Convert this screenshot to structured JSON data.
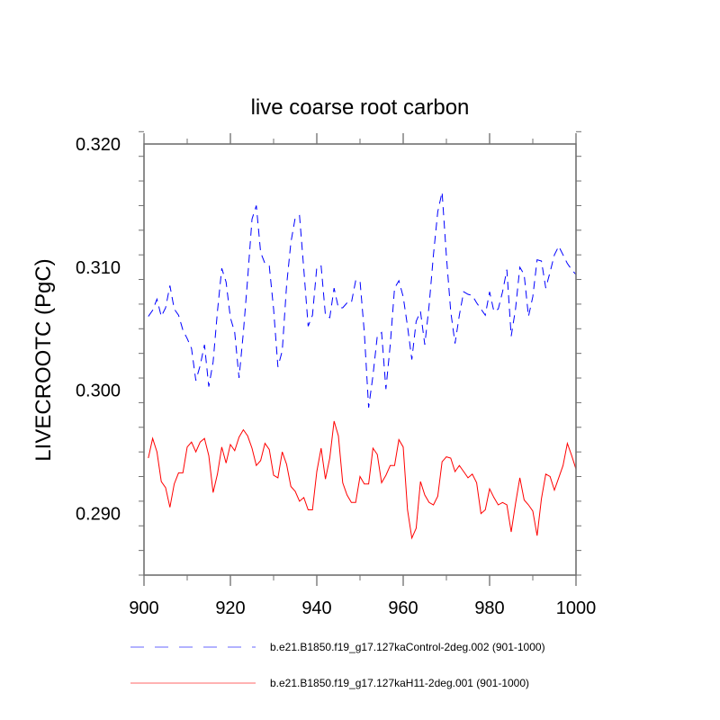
{
  "chart_data": {
    "type": "line",
    "title": "live coarse root carbon",
    "xlabel": "",
    "ylabel": "LIVECROOTC  (PgC)",
    "xlim": [
      900,
      1000
    ],
    "ylim": [
      0.285,
      0.32
    ],
    "xticks": [
      900,
      920,
      940,
      960,
      980,
      1000
    ],
    "xtick_labels": [
      "900",
      "920",
      "940",
      "960",
      "980",
      "1000"
    ],
    "xminor_step": 10,
    "yticks": [
      0.29,
      0.3,
      0.31,
      0.32
    ],
    "ytick_labels": [
      "0.290",
      "0.300",
      "0.310",
      "0.320"
    ],
    "yminor_step": 0.002,
    "grid": false,
    "legend_position": "bottom",
    "x_start": 901,
    "x_step": 1,
    "series": [
      {
        "name": "b.e21.B1850.f19_g17.127kaControl-2deg.002 (901-1000)",
        "color": "#0000ff",
        "style": "dashed",
        "values": [
          0.306,
          0.3065,
          0.3074,
          0.306,
          0.3067,
          0.3085,
          0.3066,
          0.3061,
          0.3049,
          0.3042,
          0.3034,
          0.3008,
          0.302,
          0.3037,
          0.3003,
          0.3023,
          0.3064,
          0.3099,
          0.3088,
          0.3059,
          0.3047,
          0.301,
          0.3047,
          0.3091,
          0.3139,
          0.315,
          0.3112,
          0.3103,
          0.3101,
          0.3066,
          0.3019,
          0.3032,
          0.3085,
          0.312,
          0.314,
          0.3142,
          0.3098,
          0.3052,
          0.3061,
          0.31,
          0.3101,
          0.3061,
          0.3059,
          0.3083,
          0.3067,
          0.3067,
          0.3071,
          0.3071,
          0.3089,
          0.3089,
          0.3047,
          0.2986,
          0.3012,
          0.3044,
          0.3047,
          0.3001,
          0.3037,
          0.3083,
          0.3089,
          0.3076,
          0.3052,
          0.3025,
          0.3056,
          0.3064,
          0.3037,
          0.3069,
          0.311,
          0.3145,
          0.3161,
          0.3109,
          0.3064,
          0.3038,
          0.3061,
          0.308,
          0.3078,
          0.3077,
          0.3071,
          0.3066,
          0.3061,
          0.308,
          0.3064,
          0.3066,
          0.308,
          0.3098,
          0.3044,
          0.3066,
          0.31,
          0.3094,
          0.306,
          0.3076,
          0.3106,
          0.3105,
          0.3083,
          0.3096,
          0.311,
          0.3117,
          0.311,
          0.3103,
          0.3098,
          0.3094
        ]
      },
      {
        "name": "b.e21.B1850.f19_g17.127kaH11-2deg.001 (901-1000)",
        "color": "#ff0000",
        "style": "solid",
        "values": [
          0.2945,
          0.2961,
          0.295,
          0.2926,
          0.2921,
          0.2905,
          0.2924,
          0.2933,
          0.2933,
          0.2954,
          0.2958,
          0.295,
          0.2958,
          0.2961,
          0.2947,
          0.2917,
          0.2932,
          0.2954,
          0.2941,
          0.2956,
          0.2951,
          0.2962,
          0.2968,
          0.2963,
          0.2953,
          0.2939,
          0.2943,
          0.2957,
          0.2952,
          0.2931,
          0.2929,
          0.295,
          0.294,
          0.2922,
          0.2918,
          0.291,
          0.2913,
          0.2903,
          0.2903,
          0.2934,
          0.2953,
          0.2928,
          0.2945,
          0.2975,
          0.2963,
          0.2925,
          0.2915,
          0.2909,
          0.2909,
          0.293,
          0.2924,
          0.2924,
          0.2953,
          0.2948,
          0.2925,
          0.2931,
          0.2939,
          0.2939,
          0.296,
          0.2954,
          0.2903,
          0.288,
          0.2888,
          0.2926,
          0.2915,
          0.2909,
          0.2907,
          0.2914,
          0.2942,
          0.2946,
          0.2945,
          0.2934,
          0.2939,
          0.2934,
          0.2929,
          0.2932,
          0.2925,
          0.29,
          0.2903,
          0.292,
          0.2913,
          0.2907,
          0.2909,
          0.2907,
          0.2885,
          0.2908,
          0.2929,
          0.2911,
          0.2907,
          0.2902,
          0.2882,
          0.2912,
          0.2932,
          0.293,
          0.2919,
          0.2929,
          0.2939,
          0.2957,
          0.2947,
          0.2936
        ]
      }
    ]
  }
}
